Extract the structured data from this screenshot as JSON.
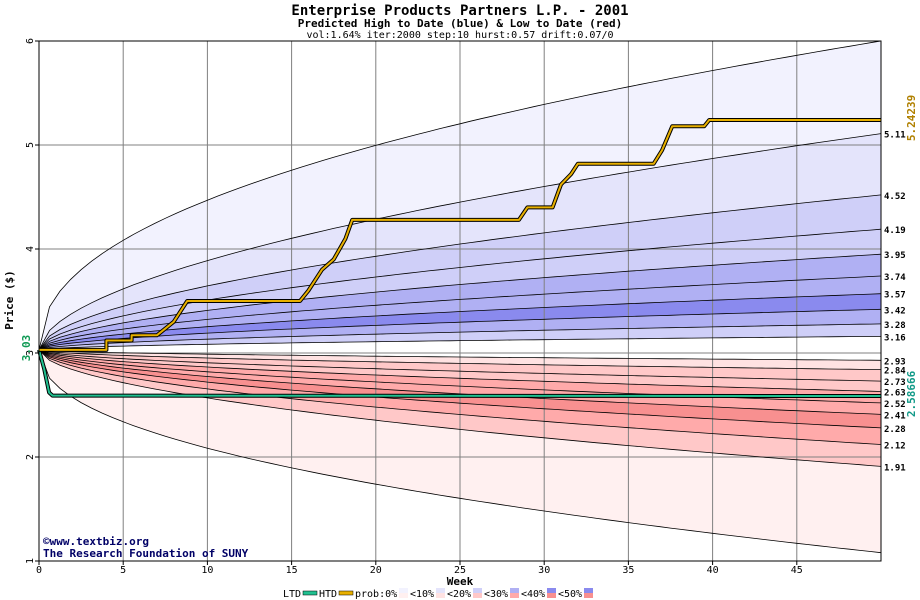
{
  "chart_data": {
    "type": "area",
    "title": "Enterprise Products Partners L.P. - 2001",
    "subtitle": "Predicted High to Date (blue) &  Low to Date (red)",
    "params": "vol:1.64% iter:2000 step:10 hurst:0.57 drift:0.07/0",
    "xlabel": "Week",
    "ylabel": "Price ($)",
    "xlim": [
      0,
      50
    ],
    "ylim": [
      1,
      6
    ],
    "xticks": [
      0,
      5,
      10,
      15,
      20,
      25,
      30,
      35,
      40,
      45
    ],
    "yticks": [
      1,
      2,
      3,
      4,
      5,
      6
    ],
    "start_price": "3.03",
    "grid": true,
    "high_quantiles": [
      {
        "label": "5.11",
        "end": 5.11
      },
      {
        "label": "4.52",
        "end": 4.52
      },
      {
        "label": "4.19",
        "end": 4.19
      },
      {
        "label": "3.95",
        "end": 3.95
      },
      {
        "label": "3.74",
        "end": 3.74
      },
      {
        "label": "3.57",
        "end": 3.57
      },
      {
        "label": "3.42",
        "end": 3.42
      },
      {
        "label": "3.28",
        "end": 3.28
      },
      {
        "label": "3.16",
        "end": 3.16
      }
    ],
    "low_quantiles": [
      {
        "label": "2.93",
        "end": 2.93
      },
      {
        "label": "2.84",
        "end": 2.84
      },
      {
        "label": "2.73",
        "end": 2.73
      },
      {
        "label": "2.63",
        "end": 2.63
      },
      {
        "label": "2.52",
        "end": 2.52
      },
      {
        "label": "2.41",
        "end": 2.41
      },
      {
        "label": "2.28",
        "end": 2.28
      },
      {
        "label": "2.12",
        "end": 2.12
      },
      {
        "label": "1.91",
        "end": 1.91
      }
    ],
    "outer_high_envelope_end": 6.0,
    "outer_low_envelope_end": 1.08,
    "htd_series": {
      "name": "HTD",
      "color": "#e8b000",
      "final_label": "5.24239",
      "points": [
        [
          0,
          3.03
        ],
        [
          4,
          3.03
        ],
        [
          4,
          3.12
        ],
        [
          5.5,
          3.12
        ],
        [
          5.5,
          3.17
        ],
        [
          7,
          3.17
        ],
        [
          8,
          3.3
        ],
        [
          8.8,
          3.5
        ],
        [
          15.5,
          3.5
        ],
        [
          16,
          3.6
        ],
        [
          16.8,
          3.8
        ],
        [
          17.5,
          3.9
        ],
        [
          18.2,
          4.1
        ],
        [
          18.6,
          4.28
        ],
        [
          28.5,
          4.28
        ],
        [
          29,
          4.4
        ],
        [
          30.5,
          4.4
        ],
        [
          31,
          4.62
        ],
        [
          31.6,
          4.72
        ],
        [
          32,
          4.82
        ],
        [
          36.5,
          4.82
        ],
        [
          37,
          4.95
        ],
        [
          37.6,
          5.18
        ],
        [
          39.5,
          5.18
        ],
        [
          39.8,
          5.24
        ],
        [
          50,
          5.24
        ]
      ]
    },
    "ltd_series": {
      "name": "LTD",
      "color": "#20c090",
      "final_label": "2.58666",
      "points": [
        [
          0,
          3.03
        ],
        [
          0.3,
          2.85
        ],
        [
          0.6,
          2.62
        ],
        [
          0.8,
          2.59
        ],
        [
          50,
          2.587
        ]
      ]
    },
    "legend": {
      "items": [
        "LTD",
        "HTD",
        "prob:0%",
        "<10%",
        "<20%",
        "<30%",
        "<40%",
        "<50%"
      ],
      "blue_colors": [
        "#f2f2fe",
        "#e4e4fb",
        "#cfcff8",
        "#b0b0f3",
        "#8a8aee"
      ],
      "red_colors": [
        "#fff0f0",
        "#ffe2e2",
        "#ffc8c8",
        "#ffaaaa",
        "#f89090"
      ]
    },
    "watermark": [
      "©www.textbiz.org",
      "The Research Foundation of SUNY"
    ]
  }
}
